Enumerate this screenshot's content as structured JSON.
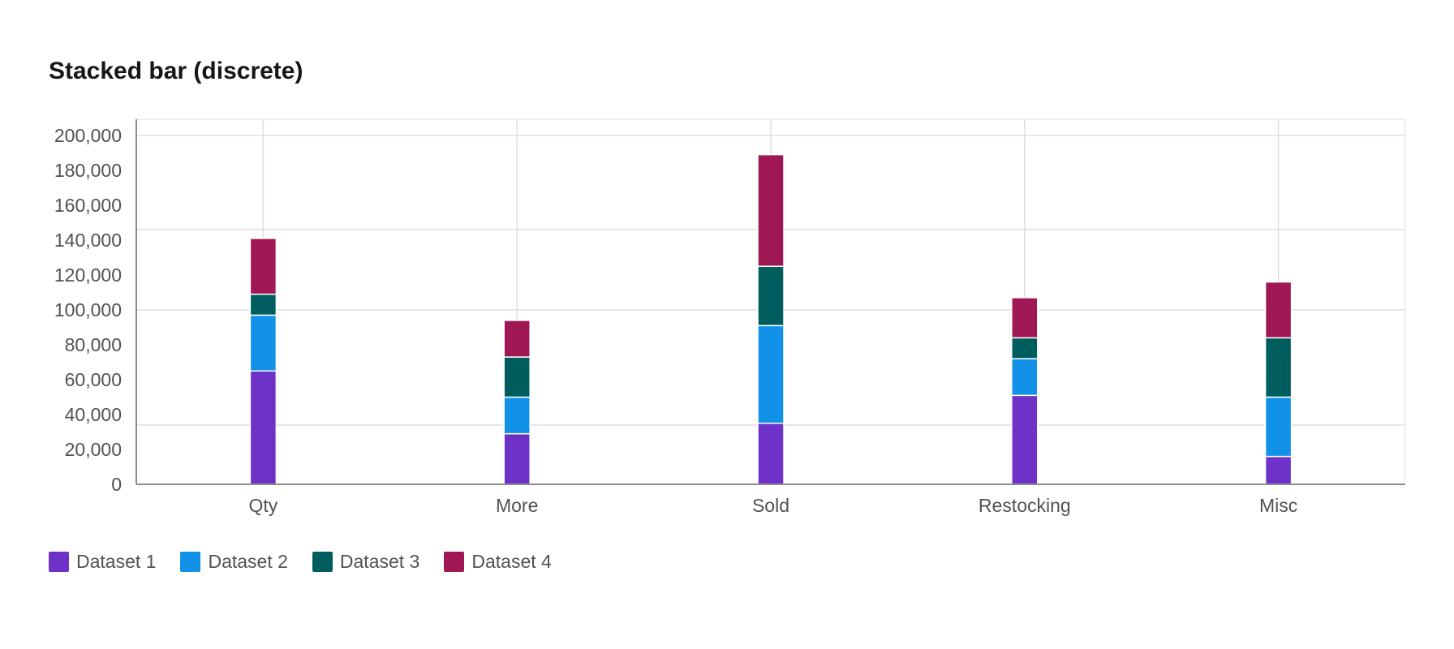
{
  "title": "Stacked bar (discrete)",
  "chart_data": {
    "type": "bar",
    "stacked": true,
    "title": "Stacked bar (discrete)",
    "xlabel": "",
    "ylabel": "",
    "categories": [
      "Qty",
      "More",
      "Sold",
      "Restocking",
      "Misc"
    ],
    "ylim": [
      0,
      200000
    ],
    "yticks": [
      0,
      20000,
      40000,
      60000,
      80000,
      100000,
      120000,
      140000,
      160000,
      180000,
      200000
    ],
    "ytick_labels": [
      "0",
      "20,000",
      "40,000",
      "60,000",
      "80,000",
      "100,000",
      "120,000",
      "140,000",
      "160,000",
      "180,000",
      "200,000"
    ],
    "grid": true,
    "legend_position": "bottom-left",
    "series": [
      {
        "name": "Dataset 1",
        "color": "#6e32c9",
        "values": [
          65000,
          29000,
          35000,
          51000,
          16000
        ]
      },
      {
        "name": "Dataset 2",
        "color": "#1192e8",
        "values": [
          32000,
          21000,
          56000,
          21000,
          34000
        ]
      },
      {
        "name": "Dataset 3",
        "color": "#005d5d",
        "values": [
          12000,
          23000,
          34000,
          12000,
          34000
        ]
      },
      {
        "name": "Dataset 4",
        "color": "#9f1853",
        "values": [
          32000,
          21000,
          64000,
          23000,
          32000
        ]
      }
    ]
  }
}
